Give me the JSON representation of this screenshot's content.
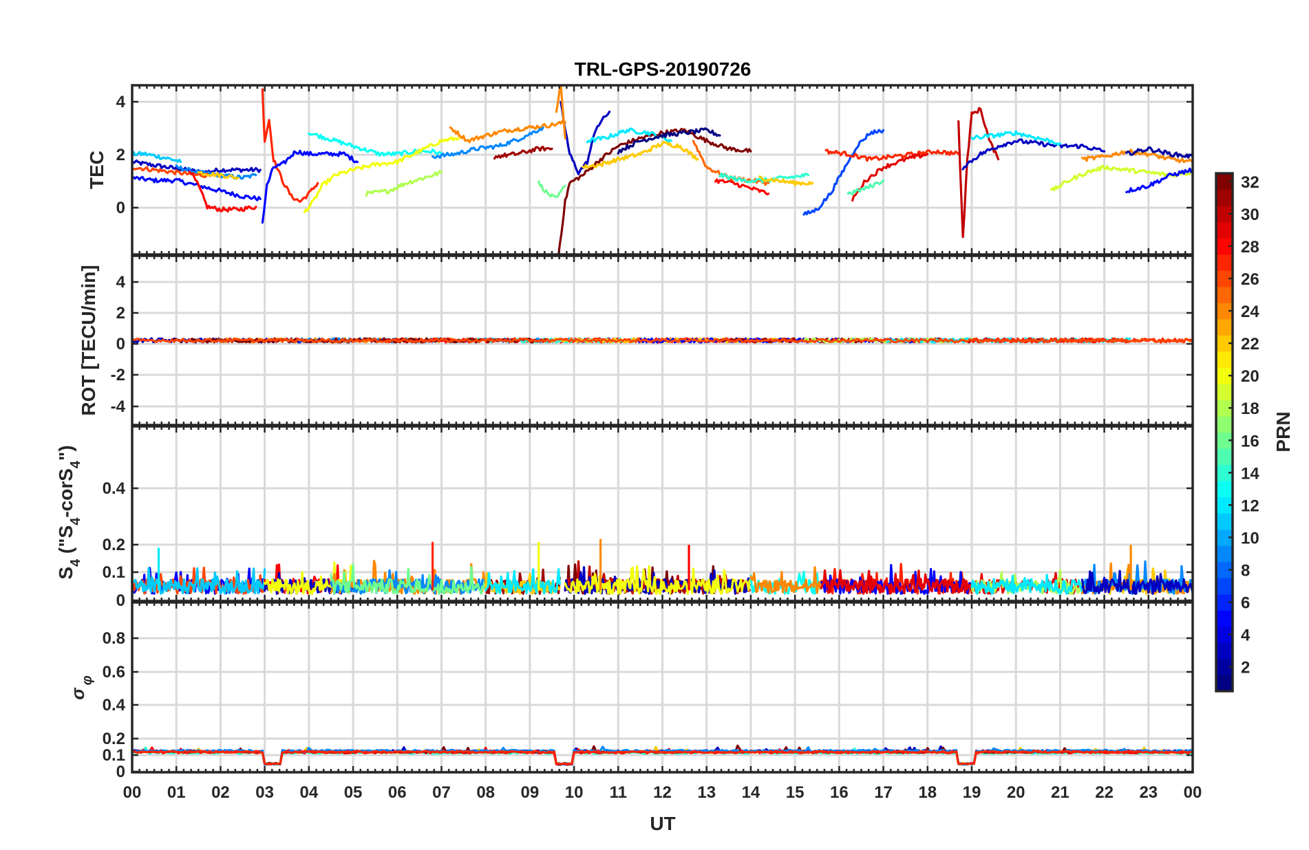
{
  "title": "TRL-GPS-20190726",
  "xlabel": "UT",
  "x_tick_labels": [
    "00",
    "01",
    "02",
    "03",
    "04",
    "05",
    "06",
    "07",
    "08",
    "09",
    "10",
    "11",
    "12",
    "13",
    "14",
    "15",
    "16",
    "17",
    "18",
    "19",
    "20",
    "21",
    "22",
    "23",
    "00"
  ],
  "colorbar": {
    "label": "PRN",
    "range": [
      1,
      32
    ],
    "tick_labels": [
      "2",
      "4",
      "6",
      "8",
      "10",
      "12",
      "14",
      "16",
      "18",
      "20",
      "22",
      "24",
      "26",
      "28",
      "30",
      "32"
    ],
    "colormap": "jet"
  },
  "chart_data": [
    {
      "type": "line",
      "panel": "TEC",
      "ylabel": "TEC",
      "xlim": [
        0,
        24
      ],
      "ylim": [
        -1.8,
        4.6
      ],
      "yticks": [
        "0",
        "2",
        "4"
      ],
      "grid": true,
      "series": [
        {
          "prn": 3,
          "x": [
            0.0,
            0.4,
            0.8,
            1.2,
            1.6,
            2.0,
            2.4,
            2.9
          ],
          "y": [
            1.7,
            1.6,
            1.5,
            1.4,
            1.3,
            1.4,
            1.4,
            1.4
          ]
        },
        {
          "prn": 5,
          "x": [
            0.0,
            0.5,
            1.0,
            1.5,
            2.0,
            2.5,
            2.9
          ],
          "y": [
            1.1,
            1.0,
            1.0,
            0.8,
            0.6,
            0.4,
            0.3
          ]
        },
        {
          "prn": 11,
          "x": [
            0.0,
            0.3,
            0.6,
            0.9,
            1.1
          ],
          "y": [
            2.0,
            2.0,
            1.9,
            1.8,
            1.7
          ]
        },
        {
          "prn": 9,
          "x": [
            1.0,
            1.5,
            2.0,
            2.5,
            2.8
          ],
          "y": [
            1.5,
            1.3,
            1.2,
            1.1,
            1.2
          ]
        },
        {
          "prn": 26,
          "x": [
            0.0,
            0.5,
            1.0,
            1.5,
            1.8
          ],
          "y": [
            1.5,
            1.4,
            1.3,
            1.2,
            1.2
          ]
        },
        {
          "prn": 28,
          "x": [
            1.3,
            1.5,
            1.7,
            2.0,
            2.4,
            2.8
          ],
          "y": [
            1.4,
            0.8,
            0.0,
            -0.1,
            -0.1,
            0.0
          ]
        },
        {
          "prn": 22,
          "x": [
            1.5,
            2.0,
            2.4
          ],
          "y": [
            1.3,
            1.2,
            1.1
          ]
        },
        {
          "prn": 27,
          "x": [
            2.95,
            3.0,
            3.1,
            3.2,
            3.4,
            3.6,
            3.8,
            4.0,
            4.2
          ],
          "y": [
            4.4,
            2.5,
            3.3,
            1.8,
            1.0,
            0.4,
            0.2,
            0.5,
            0.9
          ]
        },
        {
          "prn": 5,
          "x": [
            2.95,
            3.05,
            3.2,
            3.4,
            3.7,
            4.0,
            4.4,
            4.8,
            5.1
          ],
          "y": [
            -0.6,
            0.8,
            1.5,
            1.6,
            2.1,
            2.0,
            2.0,
            2.0,
            1.7
          ]
        },
        {
          "prn": 13,
          "x": [
            4.0,
            4.4,
            4.8,
            5.2,
            5.6,
            6.0,
            6.4,
            6.8,
            7.0
          ],
          "y": [
            2.8,
            2.6,
            2.4,
            2.2,
            2.0,
            2.0,
            2.1,
            2.1,
            2.0
          ]
        },
        {
          "prn": 20,
          "x": [
            3.9,
            4.1,
            4.3,
            4.6,
            5.0,
            5.5,
            6.0,
            6.5,
            7.0,
            7.4
          ],
          "y": [
            -0.2,
            0.2,
            0.8,
            1.2,
            1.4,
            1.6,
            1.7,
            2.1,
            2.5,
            2.6
          ]
        },
        {
          "prn": 18,
          "x": [
            5.3,
            5.8,
            6.2,
            6.6,
            7.0
          ],
          "y": [
            0.5,
            0.6,
            0.9,
            1.1,
            1.3
          ]
        },
        {
          "prn": 24,
          "x": [
            7.2,
            7.6,
            8.0,
            8.5,
            9.0,
            9.5,
            9.8
          ],
          "y": [
            3.0,
            2.5,
            2.7,
            2.9,
            3.0,
            3.1,
            3.2
          ]
        },
        {
          "prn": 9,
          "x": [
            6.8,
            7.3,
            7.8,
            8.3,
            8.8,
            9.3
          ],
          "y": [
            1.9,
            2.0,
            2.2,
            2.3,
            2.6,
            3.0
          ]
        },
        {
          "prn": 16,
          "x": [
            9.2,
            9.4,
            9.6,
            9.8
          ],
          "y": [
            0.9,
            0.5,
            0.3,
            0.8
          ]
        },
        {
          "prn": 31,
          "x": [
            8.2,
            8.7,
            9.2,
            9.5
          ],
          "y": [
            1.9,
            2.0,
            2.2,
            2.2
          ]
        },
        {
          "prn": 32,
          "x": [
            9.65,
            9.8,
            9.9,
            10.2,
            10.6,
            11.0,
            11.5,
            12.0,
            12.5,
            13.0,
            13.5,
            14.0
          ],
          "y": [
            -1.8,
            0.2,
            0.9,
            1.2,
            1.8,
            2.3,
            2.6,
            2.8,
            2.9,
            2.5,
            2.2,
            2.1
          ]
        },
        {
          "prn": 3,
          "x": [
            9.7,
            9.9,
            10.1,
            10.3,
            10.5,
            10.8
          ],
          "y": [
            3.9,
            2.0,
            1.3,
            1.7,
            3.0,
            3.6
          ]
        },
        {
          "prn": 24,
          "x": [
            9.6,
            9.7,
            9.8
          ],
          "y": [
            3.6,
            4.6,
            2.6
          ]
        },
        {
          "prn": 12,
          "x": [
            10.3,
            10.7,
            11.2,
            11.7,
            12.2
          ],
          "y": [
            2.5,
            2.6,
            2.9,
            2.8,
            2.5
          ]
        },
        {
          "prn": 22,
          "x": [
            10.2,
            10.6,
            11.0,
            11.5,
            12.0,
            12.4,
            12.8
          ],
          "y": [
            1.5,
            1.6,
            1.8,
            2.0,
            2.4,
            2.3,
            1.8
          ]
        },
        {
          "prn": 1,
          "x": [
            11.0,
            11.5,
            12.0,
            12.5,
            13.0,
            13.3
          ],
          "y": [
            2.1,
            2.5,
            2.7,
            2.8,
            2.9,
            2.7
          ]
        },
        {
          "prn": 25,
          "x": [
            12.7,
            13.0,
            13.5,
            14.0,
            14.4
          ],
          "y": [
            2.5,
            1.5,
            1.1,
            1.0,
            0.9
          ]
        },
        {
          "prn": 28,
          "x": [
            13.2,
            13.6,
            14.0,
            14.4
          ],
          "y": [
            1.0,
            0.9,
            0.7,
            0.5
          ]
        },
        {
          "prn": 14,
          "x": [
            13.3,
            13.8,
            14.3,
            14.8,
            15.3
          ],
          "y": [
            1.2,
            1.0,
            1.0,
            1.1,
            1.2
          ]
        },
        {
          "prn": 22,
          "x": [
            14.2,
            14.6,
            15.0,
            15.4
          ],
          "y": [
            1.1,
            1.0,
            0.9,
            0.9
          ]
        },
        {
          "prn": 7,
          "x": [
            15.2,
            15.5,
            15.8,
            16.1,
            16.4,
            16.7,
            17.0
          ],
          "y": [
            -0.3,
            -0.1,
            0.5,
            1.4,
            2.3,
            2.8,
            2.9
          ]
        },
        {
          "prn": 27,
          "x": [
            15.7,
            16.2,
            16.7,
            17.2,
            17.7,
            18.2,
            18.7
          ],
          "y": [
            2.1,
            2.0,
            1.8,
            1.9,
            2.0,
            2.1,
            2.0
          ]
        },
        {
          "prn": 29,
          "x": [
            16.3,
            16.6,
            17.0,
            17.5,
            18.0
          ],
          "y": [
            0.3,
            1.0,
            1.5,
            1.8,
            2.0
          ]
        },
        {
          "prn": 15,
          "x": [
            16.2,
            16.6,
            17.0
          ],
          "y": [
            0.5,
            0.7,
            1.0
          ]
        },
        {
          "prn": 30,
          "x": [
            18.7,
            18.8,
            18.9,
            19.0,
            19.2,
            19.4,
            19.6
          ],
          "y": [
            3.2,
            -1.2,
            1.8,
            3.5,
            3.7,
            2.5,
            1.8
          ]
        },
        {
          "prn": 3,
          "x": [
            18.8,
            19.2,
            19.6,
            20.0,
            20.5,
            21.0,
            21.5,
            22.0
          ],
          "y": [
            1.5,
            2.0,
            2.3,
            2.5,
            2.4,
            2.3,
            2.3,
            2.1
          ]
        },
        {
          "prn": 12,
          "x": [
            19.0,
            19.5,
            20.0,
            20.5,
            21.0
          ],
          "y": [
            2.6,
            2.7,
            2.8,
            2.6,
            2.4
          ]
        },
        {
          "prn": 19,
          "x": [
            20.8,
            21.2,
            21.6,
            22.0,
            22.5,
            23.0,
            23.5,
            24.0
          ],
          "y": [
            0.6,
            1.0,
            1.3,
            1.5,
            1.4,
            1.3,
            1.2,
            1.3
          ]
        },
        {
          "prn": 5,
          "x": [
            22.5,
            23.0,
            23.5,
            24.0
          ],
          "y": [
            0.6,
            0.8,
            1.2,
            1.4
          ]
        },
        {
          "prn": 24,
          "x": [
            21.5,
            22.0,
            22.5,
            23.0,
            23.5,
            24.0
          ],
          "y": [
            1.8,
            1.9,
            2.1,
            2.0,
            1.8,
            1.7
          ]
        },
        {
          "prn": 2,
          "x": [
            22.5,
            23.0,
            23.5,
            24.0
          ],
          "y": [
            2.0,
            2.2,
            2.0,
            1.9
          ]
        }
      ]
    },
    {
      "type": "line",
      "panel": "ROT",
      "ylabel": "ROT [TECU/min]",
      "xlim": [
        0,
        24
      ],
      "ylim": [
        -5.2,
        5.2
      ],
      "yticks": [
        "-4",
        "-2",
        "0",
        "2",
        "4"
      ],
      "grid": true,
      "description_of_values": "All PRN series near 0 TECU/min throughout the day",
      "series_summary": {
        "min": -0.15,
        "max": 0.15,
        "mean": 0.0
      }
    },
    {
      "type": "line",
      "panel": "S4",
      "ylabel": "S4 (\"S4-corS4\")",
      "xlim": [
        0,
        24
      ],
      "ylim": [
        0,
        0.6
      ],
      "yticks": [
        "0",
        "0.1",
        "0.2",
        "0.4"
      ],
      "grid": true,
      "series_summary": {
        "typical_range": [
          0.0,
          0.12
        ],
        "peak": 0.21,
        "peak_x": 10.6
      }
    },
    {
      "type": "line",
      "panel": "sigma_phi",
      "ylabel": "σ φ",
      "xlim": [
        0,
        24
      ],
      "ylim": [
        0,
        1.0
      ],
      "yticks": [
        "0",
        "0.1",
        "0.2",
        "0.4",
        "0.6",
        "0.8"
      ],
      "grid": true,
      "series_summary": {
        "typical_value": 0.12,
        "dips": [
          {
            "x_start": 2.95,
            "x_end": 3.35,
            "y": 0.05
          },
          {
            "x_start": 9.6,
            "x_end": 10.0,
            "y": 0.05
          },
          {
            "x_start": 18.7,
            "x_end": 19.1,
            "y": 0.05
          }
        ]
      }
    }
  ]
}
